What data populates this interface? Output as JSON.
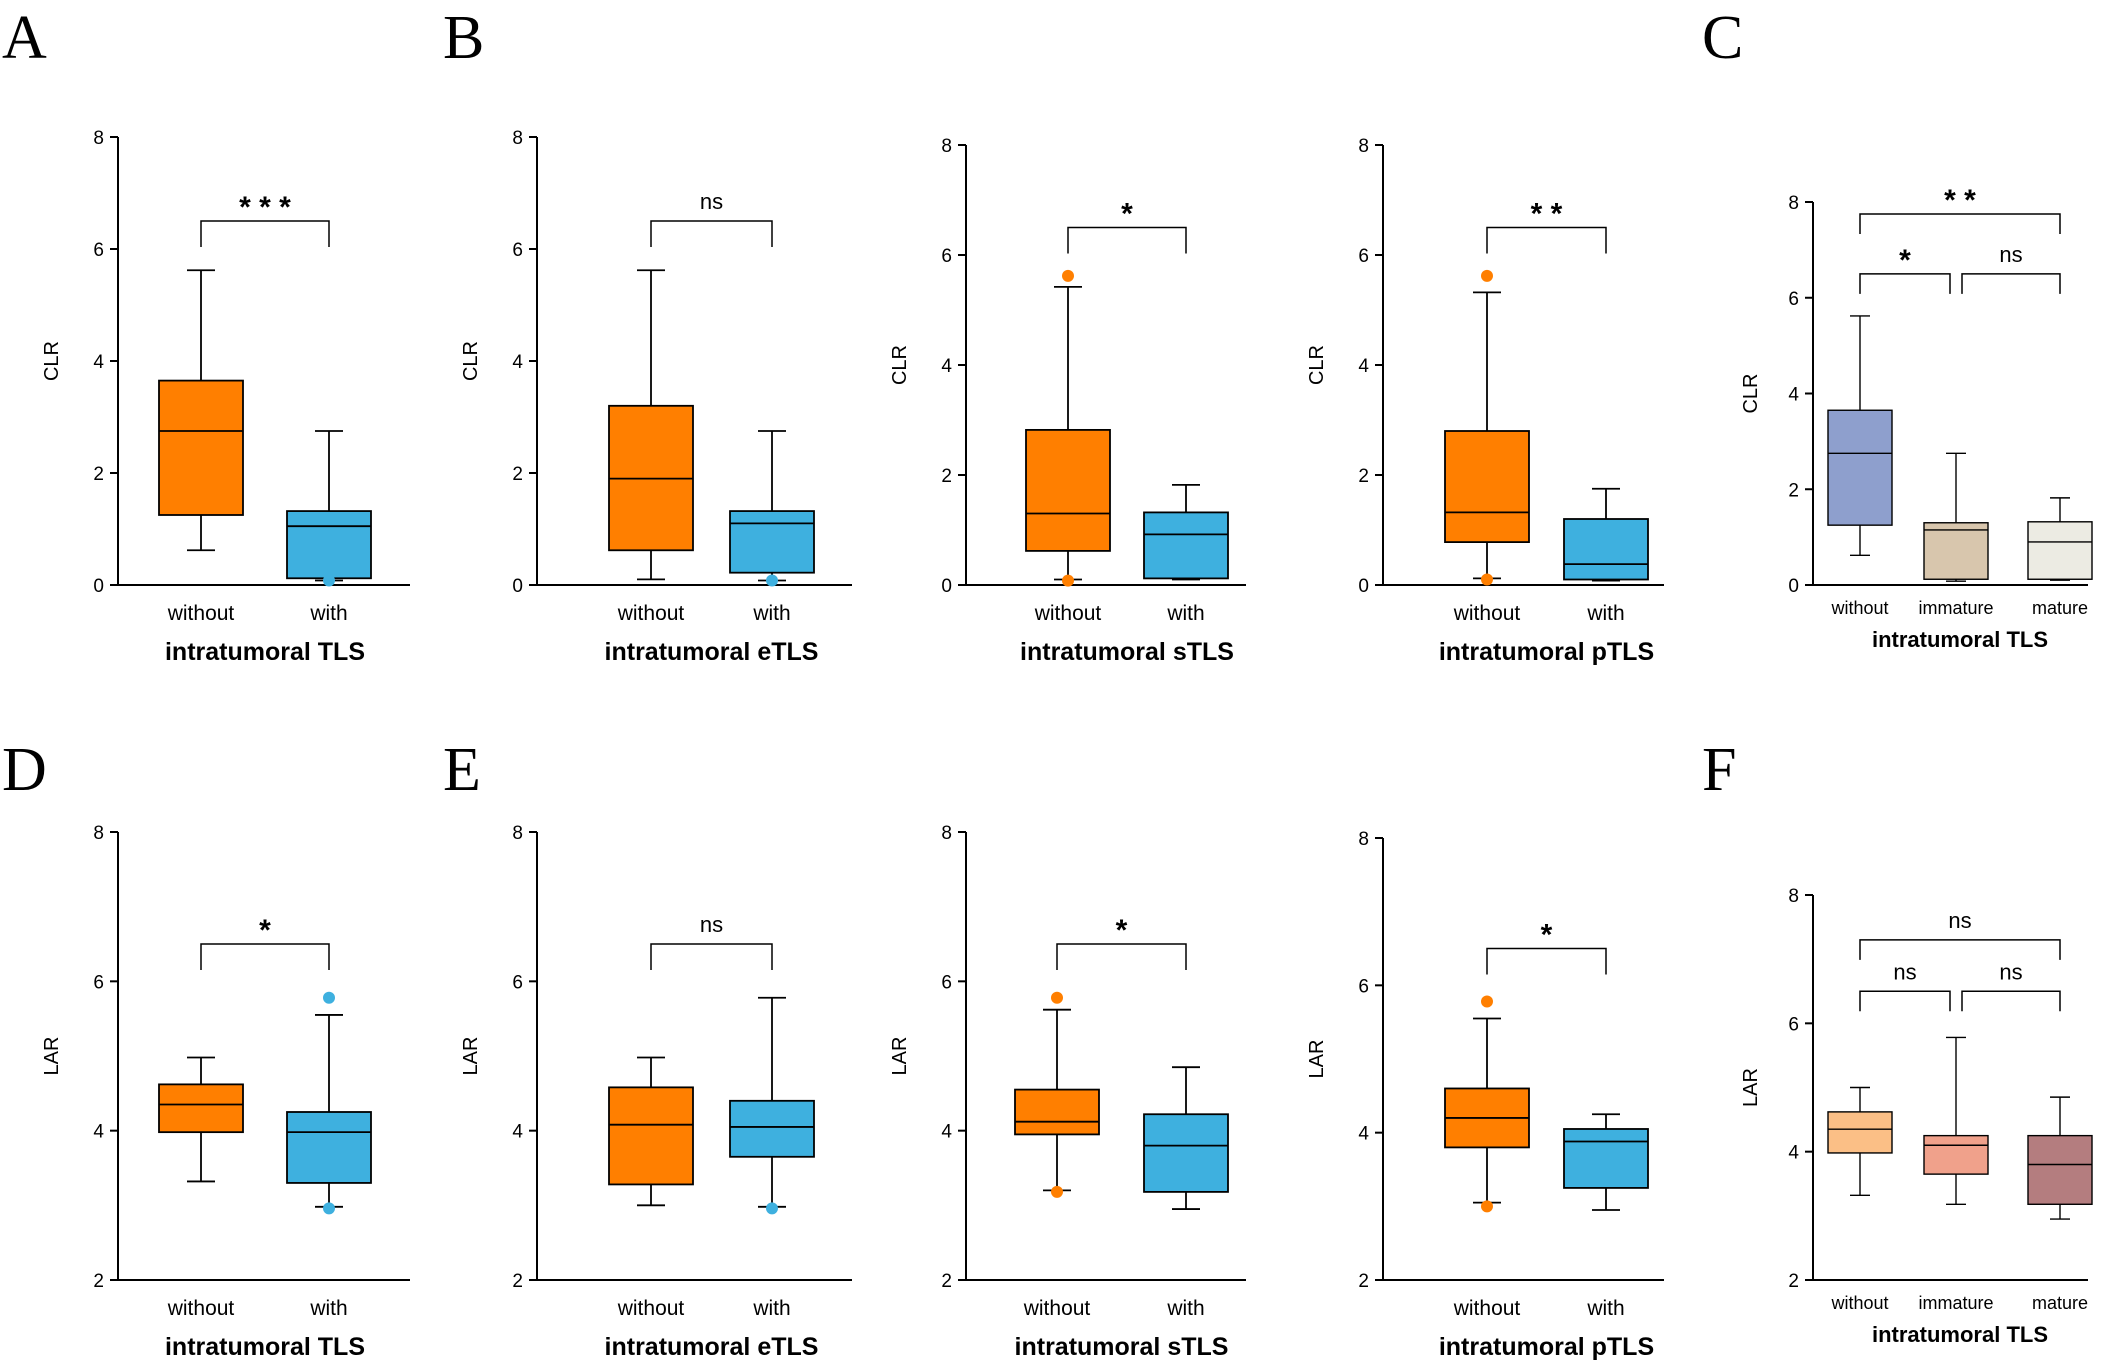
{
  "panel_labels": [
    "A",
    "B",
    "C",
    "D",
    "E",
    "F"
  ],
  "chart_data": [
    {
      "id": "A-CLR",
      "panel": "A",
      "type": "box",
      "ylabel": "CLR",
      "xlabel": "intratumoral TLS",
      "ylim": [
        0,
        8
      ],
      "yticks": [
        "0",
        "2",
        "4",
        "6",
        "8"
      ],
      "categories": [
        "without",
        "with"
      ],
      "colors": [
        "#ff7f00",
        "#3eb0df"
      ],
      "boxes": [
        {
          "min": 0.62,
          "q1": 1.25,
          "median": 2.75,
          "q3": 3.65,
          "max": 5.62,
          "outliers": []
        },
        {
          "min": 0.08,
          "q1": 0.12,
          "median": 1.05,
          "q3": 1.32,
          "max": 2.75,
          "outliers": [
            0.08
          ]
        }
      ],
      "significance": [
        {
          "from": 0,
          "to": 1,
          "y": 6.5,
          "label": "***"
        }
      ]
    },
    {
      "id": "B1-CLR",
      "panel": "B",
      "type": "box",
      "ylabel": "CLR",
      "xlabel": "intratumoral eTLS",
      "ylim": [
        0,
        8
      ],
      "yticks": [
        "0",
        "2",
        "4",
        "6",
        "8"
      ],
      "categories": [
        "without",
        "with"
      ],
      "colors": [
        "#ff7f00",
        "#3eb0df"
      ],
      "boxes": [
        {
          "min": 0.1,
          "q1": 0.62,
          "median": 1.9,
          "q3": 3.2,
          "max": 5.62,
          "outliers": []
        },
        {
          "min": 0.08,
          "q1": 0.22,
          "median": 1.1,
          "q3": 1.32,
          "max": 2.75,
          "outliers": [
            0.08
          ]
        }
      ],
      "significance": [
        {
          "from": 0,
          "to": 1,
          "y": 6.5,
          "label": "ns"
        }
      ]
    },
    {
      "id": "B2-CLR",
      "panel": "B",
      "type": "box",
      "ylabel": "CLR",
      "xlabel": "intratumoral sTLS",
      "ylim": [
        0,
        8
      ],
      "yticks": [
        "0",
        "2",
        "4",
        "6",
        "8"
      ],
      "categories": [
        "without",
        "with"
      ],
      "colors": [
        "#ff7f00",
        "#3eb0df"
      ],
      "boxes": [
        {
          "min": 0.1,
          "q1": 0.62,
          "median": 1.3,
          "q3": 2.82,
          "max": 5.42,
          "outliers": [
            5.62,
            0.08
          ]
        },
        {
          "min": 0.1,
          "q1": 0.12,
          "median": 0.92,
          "q3": 1.32,
          "max": 1.82,
          "outliers": []
        }
      ],
      "significance": [
        {
          "from": 0,
          "to": 1,
          "y": 6.5,
          "label": "*"
        }
      ]
    },
    {
      "id": "B3-CLR",
      "panel": "B",
      "type": "box",
      "ylabel": "CLR",
      "xlabel": "intratumoral pTLS",
      "ylim": [
        0,
        8
      ],
      "yticks": [
        "0",
        "2",
        "4",
        "6",
        "8"
      ],
      "categories": [
        "without",
        "with"
      ],
      "colors": [
        "#ff7f00",
        "#3eb0df"
      ],
      "boxes": [
        {
          "min": 0.12,
          "q1": 0.78,
          "median": 1.32,
          "q3": 2.8,
          "max": 5.32,
          "outliers": [
            5.62,
            0.1
          ]
        },
        {
          "min": 0.08,
          "q1": 0.1,
          "median": 0.38,
          "q3": 1.2,
          "max": 1.75,
          "outliers": []
        }
      ],
      "significance": [
        {
          "from": 0,
          "to": 1,
          "y": 6.5,
          "label": "**"
        }
      ]
    },
    {
      "id": "C-CLR",
      "panel": "C",
      "type": "box",
      "ylabel": "CLR",
      "xlabel": "intratumoral TLS",
      "ylim": [
        0,
        8
      ],
      "yticks": [
        "0",
        "2",
        "4",
        "6",
        "8"
      ],
      "categories": [
        "without",
        "immature",
        "mature"
      ],
      "colors": [
        "#8e9fcd",
        "#d8c6ad",
        "#ecebe3"
      ],
      "boxes": [
        {
          "min": 0.62,
          "q1": 1.25,
          "median": 2.75,
          "q3": 3.65,
          "max": 5.62,
          "outliers": []
        },
        {
          "min": 0.08,
          "q1": 0.12,
          "median": 1.15,
          "q3": 1.3,
          "max": 2.75,
          "outliers": []
        },
        {
          "min": 0.1,
          "q1": 0.12,
          "median": 0.9,
          "q3": 1.32,
          "max": 1.82,
          "outliers": []
        }
      ],
      "significance": [
        {
          "from": 0,
          "to": 2,
          "y": 7.75,
          "label": "**"
        },
        {
          "from": 0,
          "to": 1,
          "y": 6.5,
          "label": "*"
        },
        {
          "from": 1,
          "to": 2,
          "y": 6.5,
          "label": "ns"
        }
      ]
    },
    {
      "id": "D-LAR",
      "panel": "D",
      "type": "box",
      "ylabel": "LAR",
      "xlabel": "intratumoral TLS",
      "ylim": [
        2,
        8
      ],
      "yticks": [
        "2",
        "4",
        "6",
        "8"
      ],
      "categories": [
        "without",
        "with"
      ],
      "colors": [
        "#ff7f00",
        "#3eb0df"
      ],
      "boxes": [
        {
          "min": 3.32,
          "q1": 3.98,
          "median": 4.35,
          "q3": 4.62,
          "max": 4.98,
          "outliers": []
        },
        {
          "min": 2.98,
          "q1": 3.3,
          "median": 3.98,
          "q3": 4.25,
          "max": 5.55,
          "outliers": [
            5.78,
            2.96
          ]
        }
      ],
      "significance": [
        {
          "from": 0,
          "to": 1,
          "y": 6.5,
          "label": "*"
        }
      ]
    },
    {
      "id": "E1-LAR",
      "panel": "E",
      "type": "box",
      "ylabel": "LAR",
      "xlabel": "intratumoral eTLS",
      "ylim": [
        2,
        8
      ],
      "yticks": [
        "2",
        "4",
        "6",
        "8"
      ],
      "categories": [
        "without",
        "with"
      ],
      "colors": [
        "#ff7f00",
        "#3eb0df"
      ],
      "boxes": [
        {
          "min": 3.0,
          "q1": 3.28,
          "median": 4.08,
          "q3": 4.58,
          "max": 4.98,
          "outliers": []
        },
        {
          "min": 2.98,
          "q1": 3.65,
          "median": 4.05,
          "q3": 4.4,
          "max": 5.78,
          "outliers": [
            2.96
          ]
        }
      ],
      "significance": [
        {
          "from": 0,
          "to": 1,
          "y": 6.5,
          "label": "ns"
        }
      ]
    },
    {
      "id": "E2-LAR",
      "panel": "E",
      "type": "box",
      "ylabel": "LAR",
      "xlabel": "intratumoral sTLS",
      "ylim": [
        2,
        8
      ],
      "yticks": [
        "2",
        "4",
        "6",
        "8"
      ],
      "categories": [
        "without",
        "with"
      ],
      "colors": [
        "#ff7f00",
        "#3eb0df"
      ],
      "boxes": [
        {
          "min": 3.2,
          "q1": 3.95,
          "median": 4.12,
          "q3": 4.55,
          "max": 5.62,
          "outliers": [
            5.78,
            3.18
          ]
        },
        {
          "min": 2.95,
          "q1": 3.18,
          "median": 3.8,
          "q3": 4.22,
          "max": 4.85,
          "outliers": []
        }
      ],
      "significance": [
        {
          "from": 0,
          "to": 1,
          "y": 6.5,
          "label": "*"
        }
      ]
    },
    {
      "id": "E3-LAR",
      "panel": "E",
      "type": "box",
      "ylabel": "LAR",
      "xlabel": "intratumoral pTLS",
      "ylim": [
        2,
        8
      ],
      "yticks": [
        "2",
        "4",
        "6",
        "8"
      ],
      "categories": [
        "without",
        "with"
      ],
      "colors": [
        "#ff7f00",
        "#3eb0df"
      ],
      "boxes": [
        {
          "min": 3.05,
          "q1": 3.8,
          "median": 4.2,
          "q3": 4.6,
          "max": 5.55,
          "outliers": [
            5.78,
            3.0
          ]
        },
        {
          "min": 2.95,
          "q1": 3.25,
          "median": 3.88,
          "q3": 4.05,
          "max": 4.25,
          "outliers": []
        }
      ],
      "significance": [
        {
          "from": 0,
          "to": 1,
          "y": 6.5,
          "label": "*"
        }
      ]
    },
    {
      "id": "F-LAR",
      "panel": "F",
      "type": "box",
      "ylabel": "LAR",
      "xlabel": "intratumoral TLS",
      "ylim": [
        2,
        8
      ],
      "yticks": [
        "2",
        "4",
        "6",
        "8"
      ],
      "categories": [
        "without",
        "immature",
        "mature"
      ],
      "colors": [
        "#fbbf86",
        "#f0a18b",
        "#b47d7f"
      ],
      "boxes": [
        {
          "min": 3.32,
          "q1": 3.98,
          "median": 4.35,
          "q3": 4.62,
          "max": 5.0,
          "outliers": []
        },
        {
          "min": 3.18,
          "q1": 3.65,
          "median": 4.1,
          "q3": 4.25,
          "max": 5.78,
          "outliers": []
        },
        {
          "min": 2.95,
          "q1": 3.18,
          "median": 3.8,
          "q3": 4.25,
          "max": 4.85,
          "outliers": []
        }
      ],
      "significance": [
        {
          "from": 0,
          "to": 2,
          "y": 7.3,
          "label": "ns"
        },
        {
          "from": 0,
          "to": 1,
          "y": 6.5,
          "label": "ns"
        },
        {
          "from": 1,
          "to": 2,
          "y": 6.5,
          "label": "ns"
        }
      ]
    }
  ]
}
